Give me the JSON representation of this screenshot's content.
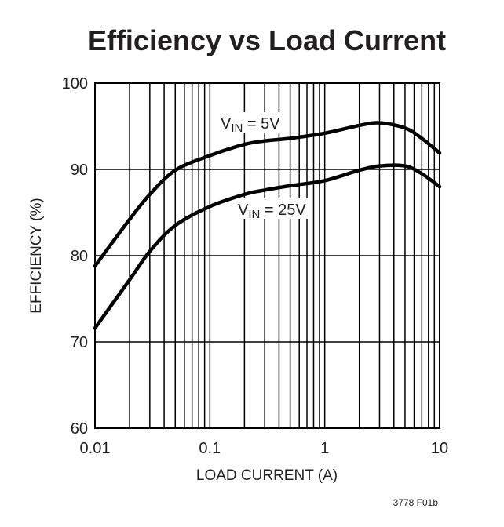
{
  "chart_data": {
    "type": "line",
    "title": "Efficiency vs Load Current",
    "xlabel": "LOAD CURRENT (A)",
    "ylabel": "EFFICIENCY (%)",
    "xscale": "log",
    "xlim": [
      0.01,
      10
    ],
    "ylim": [
      60,
      100
    ],
    "grid": true,
    "xticks": [
      {
        "v": 0.01,
        "label": "0.01"
      },
      {
        "v": 0.1,
        "label": "0.1"
      },
      {
        "v": 1,
        "label": "1"
      },
      {
        "v": 10,
        "label": "10"
      }
    ],
    "yticks": [
      {
        "v": 60,
        "label": "60"
      },
      {
        "v": 70,
        "label": "70"
      },
      {
        "v": 80,
        "label": "80"
      },
      {
        "v": 90,
        "label": "90"
      },
      {
        "v": 100,
        "label": "100"
      }
    ],
    "x": [
      0.01,
      0.02,
      0.03,
      0.05,
      0.1,
      0.2,
      0.3,
      0.5,
      1,
      2,
      3,
      5,
      7,
      10
    ],
    "series": [
      {
        "name_main": "V",
        "name_sub": "IN",
        "name_rest": " = 5V",
        "values": [
          78.8,
          84.2,
          87.1,
          89.9,
          91.6,
          92.9,
          93.3,
          93.6,
          94.2,
          95.1,
          95.4,
          94.8,
          93.6,
          91.9
        ]
      },
      {
        "name_main": "V",
        "name_sub": "IN",
        "name_rest": " = 25V",
        "values": [
          71.6,
          77.2,
          80.5,
          83.5,
          85.7,
          87.1,
          87.6,
          88.1,
          88.7,
          89.9,
          90.4,
          90.4,
          89.5,
          88.0
        ]
      }
    ],
    "footnote": "3778 F01b",
    "colors": {
      "line": "#000000",
      "text": "#231f20"
    }
  }
}
